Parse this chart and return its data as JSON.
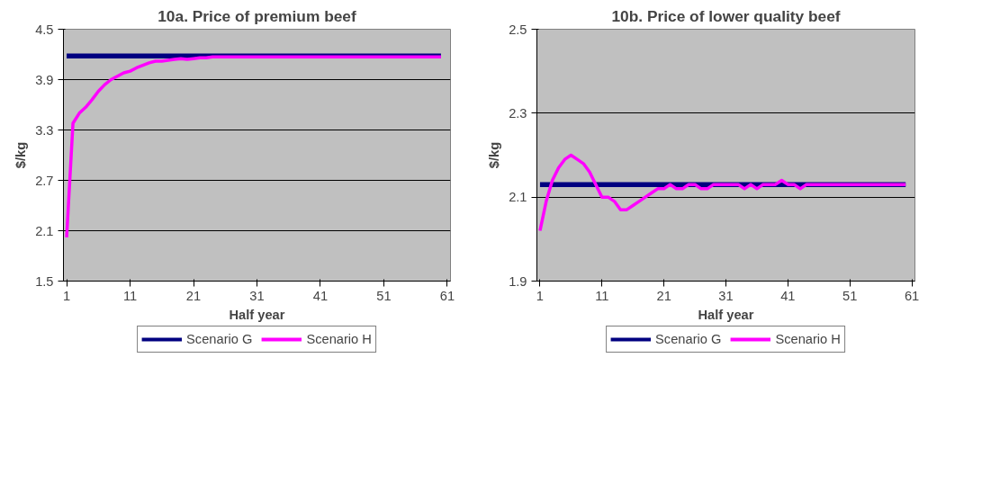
{
  "chart_data": [
    {
      "type": "line",
      "title": "10a. Price of premium beef",
      "xlabel": "Half year",
      "ylabel": "$/kg",
      "x": [
        1,
        2,
        3,
        4,
        5,
        6,
        7,
        8,
        9,
        10,
        11,
        12,
        13,
        14,
        15,
        16,
        17,
        18,
        19,
        20,
        21,
        22,
        23,
        24,
        25,
        26,
        27,
        28,
        29,
        30,
        31,
        32,
        33,
        34,
        35,
        36,
        37,
        38,
        39,
        40,
        41,
        42,
        43,
        44,
        45,
        46,
        47,
        48,
        49,
        50,
        51,
        52,
        53,
        54,
        55,
        56,
        57,
        58,
        59,
        60
      ],
      "xlim": [
        0.5,
        61.5
      ],
      "xticks": [
        1,
        11,
        21,
        31,
        41,
        51,
        61
      ],
      "ylim": [
        1.5,
        4.5
      ],
      "yticks": [
        1.5,
        2.1,
        2.7,
        3.3,
        3.9,
        4.5
      ],
      "grid": "y",
      "legend": "bottom",
      "series": [
        {
          "name": "Scenario G",
          "color": "#000080",
          "values": [
            4.18,
            4.18,
            4.18,
            4.18,
            4.18,
            4.18,
            4.18,
            4.18,
            4.18,
            4.18,
            4.18,
            4.18,
            4.18,
            4.18,
            4.18,
            4.18,
            4.18,
            4.18,
            4.18,
            4.18,
            4.18,
            4.18,
            4.18,
            4.18,
            4.18,
            4.18,
            4.18,
            4.18,
            4.18,
            4.18,
            4.18,
            4.18,
            4.18,
            4.18,
            4.18,
            4.18,
            4.18,
            4.18,
            4.18,
            4.18,
            4.18,
            4.18,
            4.18,
            4.18,
            4.18,
            4.18,
            4.18,
            4.18,
            4.18,
            4.18,
            4.18,
            4.18,
            4.18,
            4.18,
            4.18,
            4.18,
            4.18,
            4.18,
            4.18,
            4.18
          ]
        },
        {
          "name": "Scenario H",
          "color": "#ff00ff",
          "values": [
            2.02,
            3.38,
            3.5,
            3.57,
            3.66,
            3.76,
            3.84,
            3.9,
            3.94,
            3.98,
            4.0,
            4.04,
            4.07,
            4.1,
            4.12,
            4.12,
            4.13,
            4.14,
            4.15,
            4.14,
            4.15,
            4.16,
            4.16,
            4.17,
            4.17,
            4.17,
            4.17,
            4.17,
            4.17,
            4.17,
            4.17,
            4.17,
            4.17,
            4.17,
            4.17,
            4.17,
            4.17,
            4.17,
            4.17,
            4.17,
            4.17,
            4.17,
            4.17,
            4.17,
            4.17,
            4.17,
            4.17,
            4.17,
            4.17,
            4.17,
            4.17,
            4.17,
            4.17,
            4.17,
            4.17,
            4.17,
            4.17,
            4.17,
            4.17,
            4.17
          ]
        }
      ]
    },
    {
      "type": "line",
      "title": "10b. Price of lower quality beef",
      "xlabel": "Half year",
      "ylabel": "$/kg",
      "x": [
        1,
        2,
        3,
        4,
        5,
        6,
        7,
        8,
        9,
        10,
        11,
        12,
        13,
        14,
        15,
        16,
        17,
        18,
        19,
        20,
        21,
        22,
        23,
        24,
        25,
        26,
        27,
        28,
        29,
        30,
        31,
        32,
        33,
        34,
        35,
        36,
        37,
        38,
        39,
        40,
        41,
        42,
        43,
        44,
        45,
        46,
        47,
        48,
        49,
        50,
        51,
        52,
        53,
        54,
        55,
        56,
        57,
        58,
        59,
        60
      ],
      "xlim": [
        0.5,
        61.5
      ],
      "xticks": [
        1,
        11,
        21,
        31,
        41,
        51,
        61
      ],
      "ylim": [
        1.9,
        2.5
      ],
      "yticks": [
        1.9,
        2.1,
        2.3,
        2.5
      ],
      "grid": "y",
      "legend": "bottom",
      "series": [
        {
          "name": "Scenario G",
          "color": "#000080",
          "values": [
            2.13,
            2.13,
            2.13,
            2.13,
            2.13,
            2.13,
            2.13,
            2.13,
            2.13,
            2.13,
            2.13,
            2.13,
            2.13,
            2.13,
            2.13,
            2.13,
            2.13,
            2.13,
            2.13,
            2.13,
            2.13,
            2.13,
            2.13,
            2.13,
            2.13,
            2.13,
            2.13,
            2.13,
            2.13,
            2.13,
            2.13,
            2.13,
            2.13,
            2.13,
            2.13,
            2.13,
            2.13,
            2.13,
            2.13,
            2.13,
            2.13,
            2.13,
            2.13,
            2.13,
            2.13,
            2.13,
            2.13,
            2.13,
            2.13,
            2.13,
            2.13,
            2.13,
            2.13,
            2.13,
            2.13,
            2.13,
            2.13,
            2.13,
            2.13,
            2.13
          ]
        },
        {
          "name": "Scenario H",
          "color": "#ff00ff",
          "values": [
            2.02,
            2.09,
            2.14,
            2.17,
            2.19,
            2.2,
            2.19,
            2.18,
            2.16,
            2.13,
            2.1,
            2.1,
            2.09,
            2.07,
            2.07,
            2.08,
            2.09,
            2.1,
            2.11,
            2.12,
            2.12,
            2.13,
            2.12,
            2.12,
            2.13,
            2.13,
            2.12,
            2.12,
            2.13,
            2.13,
            2.13,
            2.13,
            2.13,
            2.12,
            2.13,
            2.12,
            2.13,
            2.13,
            2.13,
            2.14,
            2.13,
            2.13,
            2.12,
            2.13,
            2.13,
            2.13,
            2.13,
            2.13,
            2.13,
            2.13,
            2.13,
            2.13,
            2.13,
            2.13,
            2.13,
            2.13,
            2.13,
            2.13,
            2.13,
            2.13
          ]
        }
      ]
    }
  ]
}
